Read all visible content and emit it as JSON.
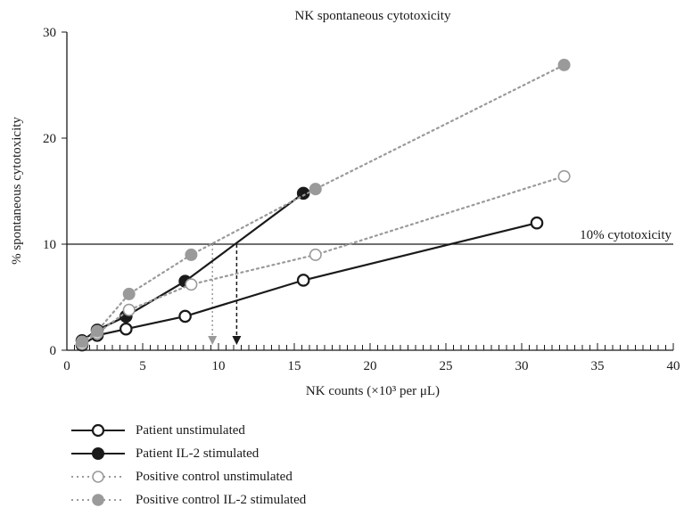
{
  "chart_data": {
    "type": "line",
    "title": "NK spontaneous cytotoxicity",
    "xlabel": "NK counts (×10³ per μL)",
    "ylabel": "% spontaneous cytotoxicity",
    "xlim": [
      0,
      40
    ],
    "ylim": [
      0,
      30
    ],
    "x_ticks": [
      "0",
      "5",
      "10",
      "15",
      "20",
      "25",
      "30",
      "35",
      "40"
    ],
    "y_ticks": [
      "0",
      "10",
      "20",
      "30"
    ],
    "grid": false,
    "legend_position": "bottom",
    "series": [
      {
        "name": "Patient unstimulated",
        "style": "solid",
        "marker": "open-circle",
        "color": "#1a1a1a",
        "points": [
          [
            1.0,
            0.5
          ],
          [
            2.0,
            1.4
          ],
          [
            3.9,
            2.0
          ],
          [
            7.8,
            3.2
          ],
          [
            15.6,
            6.6
          ],
          [
            31.0,
            12.0
          ]
        ]
      },
      {
        "name": "Patient IL-2 stimulated",
        "style": "solid",
        "marker": "filled-circle",
        "color": "#1a1a1a",
        "points": [
          [
            1.0,
            0.9
          ],
          [
            2.0,
            1.9
          ],
          [
            3.9,
            3.2
          ],
          [
            7.8,
            6.5
          ],
          [
            15.6,
            14.8
          ]
        ]
      },
      {
        "name": "Positive control unstimulated",
        "style": "dotted",
        "marker": "open-circle",
        "color": "#9a9a9a",
        "points": [
          [
            1.0,
            0.6
          ],
          [
            2.0,
            1.6
          ],
          [
            4.1,
            3.8
          ],
          [
            8.2,
            6.2
          ],
          [
            16.4,
            9.0
          ],
          [
            32.8,
            16.4
          ]
        ]
      },
      {
        "name": "Positive control IL-2 stimulated",
        "style": "dotted",
        "marker": "filled-circle",
        "color": "#9a9a9a",
        "points": [
          [
            1.0,
            0.8
          ],
          [
            2.0,
            1.8
          ],
          [
            4.1,
            5.3
          ],
          [
            8.2,
            9.0
          ],
          [
            16.4,
            15.2
          ],
          [
            32.8,
            26.9
          ]
        ]
      }
    ],
    "reference_line": {
      "y": 10,
      "label": "10% cytotoxicity"
    },
    "arrows": [
      {
        "x": 9.6,
        "style": "dotted",
        "color": "#9a9a9a"
      },
      {
        "x": 11.2,
        "style": "dashed",
        "color": "#1a1a1a"
      }
    ]
  }
}
